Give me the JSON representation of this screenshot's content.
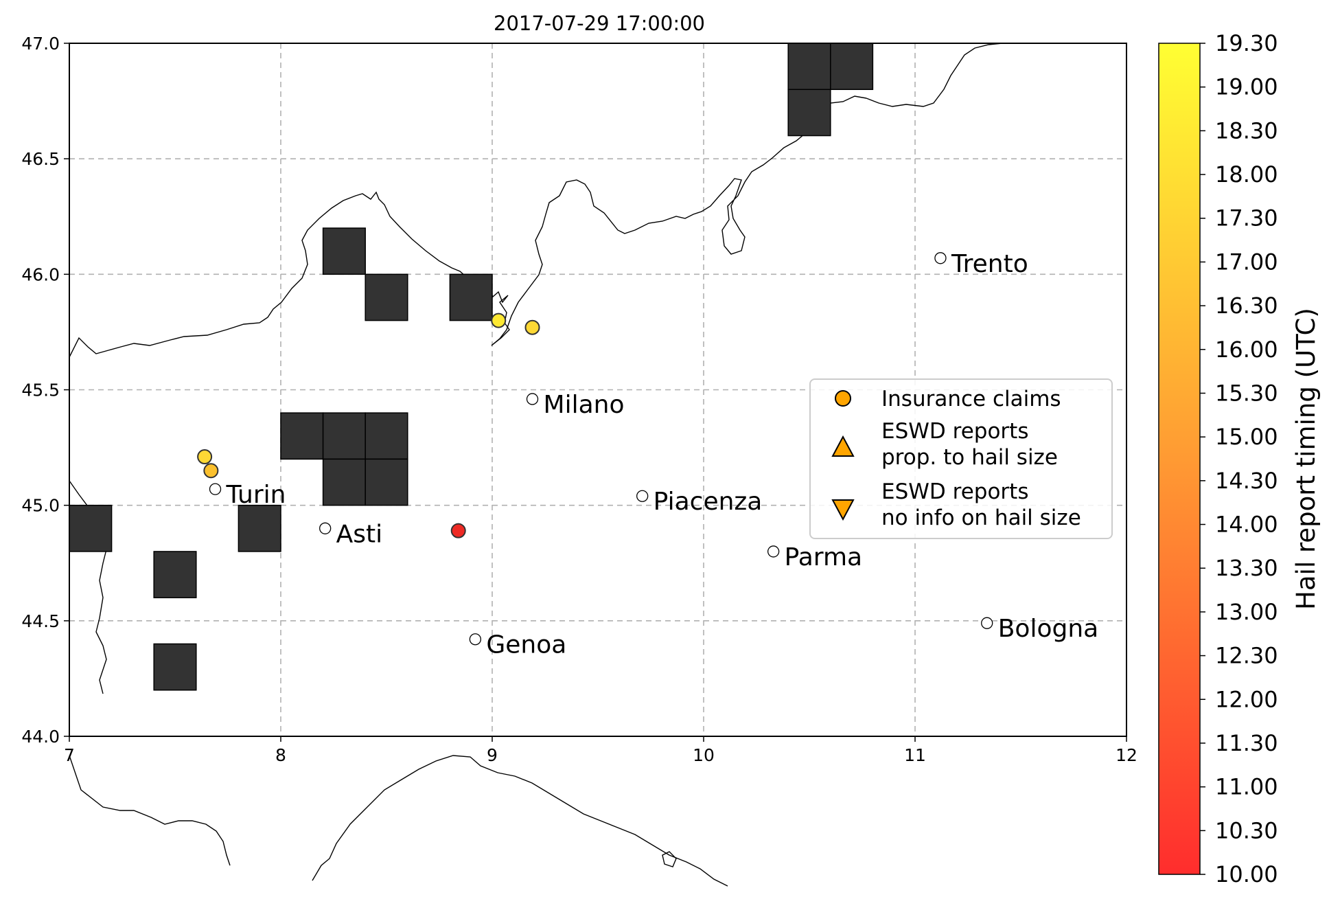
{
  "title": "2017-07-29 17:00:00",
  "chart_data": {
    "type": "scatter",
    "map_region": "Northern Italy",
    "xlim": [
      7,
      12
    ],
    "ylim": [
      44.0,
      47.0
    ],
    "x_ticks": [
      "7",
      "8",
      "9",
      "10",
      "11",
      "12"
    ],
    "y_ticks": [
      "44.0",
      "44.5",
      "45.0",
      "45.5",
      "46.0",
      "46.5",
      "47.0"
    ],
    "grid": true,
    "grid_cells": [
      {
        "lon": 10.4,
        "lat": 46.8
      },
      {
        "lon": 10.6,
        "lat": 46.8
      },
      {
        "lon": 10.4,
        "lat": 46.6
      },
      {
        "lon": 8.2,
        "lat": 46.0
      },
      {
        "lon": 8.4,
        "lat": 45.8
      },
      {
        "lon": 8.8,
        "lat": 45.8
      },
      {
        "lon": 8.0,
        "lat": 45.2
      },
      {
        "lon": 8.2,
        "lat": 45.2
      },
      {
        "lon": 8.4,
        "lat": 45.2
      },
      {
        "lon": 8.2,
        "lat": 45.0
      },
      {
        "lon": 8.4,
        "lat": 45.0
      },
      {
        "lon": 7.0,
        "lat": 44.8
      },
      {
        "lon": 7.8,
        "lat": 44.8
      },
      {
        "lon": 7.4,
        "lat": 44.6
      },
      {
        "lon": 7.4,
        "lat": 44.2
      }
    ],
    "grid_cell_size": 0.2,
    "grid_cell_color": "#333333",
    "cities": [
      {
        "name": "Trento",
        "lon": 11.12,
        "lat": 46.07
      },
      {
        "name": "Milano",
        "lon": 9.19,
        "lat": 45.46
      },
      {
        "name": "Turin",
        "lon": 7.69,
        "lat": 45.07
      },
      {
        "name": "Piacenza",
        "lon": 9.71,
        "lat": 45.04
      },
      {
        "name": "Asti",
        "lon": 8.21,
        "lat": 44.9
      },
      {
        "name": "Parma",
        "lon": 10.33,
        "lat": 44.8
      },
      {
        "name": "Bologna",
        "lon": 11.34,
        "lat": 44.49
      },
      {
        "name": "Genoa",
        "lon": 8.92,
        "lat": 44.42
      }
    ],
    "insurance_claims": [
      {
        "lon": 9.03,
        "lat": 45.8,
        "color": "#fde832"
      },
      {
        "lon": 9.19,
        "lat": 45.77,
        "color": "#fdd835"
      },
      {
        "lon": 7.64,
        "lat": 45.21,
        "color": "#fdd835"
      },
      {
        "lon": 7.67,
        "lat": 45.15,
        "color": "#fbc02d"
      },
      {
        "lon": 8.84,
        "lat": 44.89,
        "color": "#ee2a24"
      }
    ],
    "legend": {
      "position": "center-right",
      "entries": [
        {
          "marker": "circle",
          "label_lines": [
            "Insurance claims"
          ]
        },
        {
          "marker": "triangle-up",
          "label_lines": [
            "ESWD reports",
            " prop. to hail size"
          ]
        },
        {
          "marker": "triangle-down",
          "label_lines": [
            "ESWD reports",
            " no info on hail size"
          ]
        }
      ],
      "marker_color": "#ffa500"
    },
    "colorbar": {
      "title": "Hail report timing (UTC)",
      "labels": [
        "10.00",
        "10.30",
        "11.00",
        "11.30",
        "12.00",
        "12.30",
        "13.00",
        "13.30",
        "14.00",
        "14.30",
        "15.00",
        "15.30",
        "16.00",
        "16.30",
        "17.00",
        "17.30",
        "18.00",
        "18.30",
        "19.00",
        "19.30"
      ],
      "color_low": "#ff2d2d",
      "color_high": "#ffff33"
    }
  }
}
